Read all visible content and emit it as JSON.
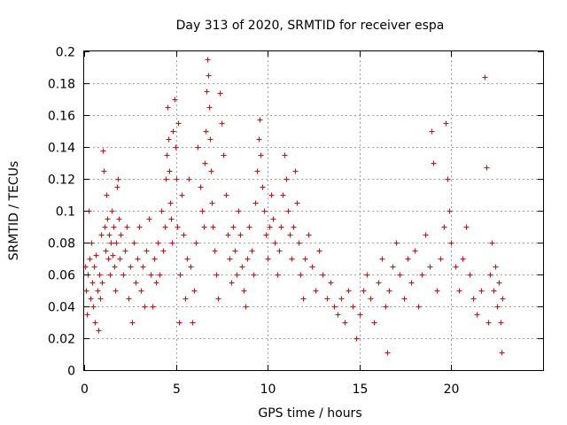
{
  "chart_data": {
    "type": "scatter",
    "title": "Day 313 of 2020, SRMTID for receiver espa",
    "xlabel": "GPS time / hours",
    "ylabel": "SRMTID / TECUs",
    "xlim": [
      0,
      25
    ],
    "ylim": [
      0,
      0.2
    ],
    "xticks": [
      0,
      5,
      10,
      15,
      20
    ],
    "yticks": [
      0,
      0.02,
      0.04,
      0.06,
      0.08,
      0.1,
      0.12,
      0.14,
      0.16,
      0.18,
      0.2
    ],
    "xtick_labels": [
      "0",
      "5",
      "10",
      "15",
      "20"
    ],
    "ytick_labels": [
      "0",
      "0.02",
      "0.04",
      "0.06",
      "0.08",
      "0.1",
      "0.12",
      "0.14",
      "0.16",
      "0.18",
      "0.2"
    ],
    "grid": true,
    "marker": "+",
    "color": "#ff0000",
    "series": [
      {
        "name": "SRMTID",
        "points": [
          [
            0.05,
            0.065
          ],
          [
            0.1,
            0.05
          ],
          [
            0.15,
            0.035
          ],
          [
            0.2,
            0.06
          ],
          [
            0.25,
            0.1
          ],
          [
            0.3,
            0.07
          ],
          [
            0.35,
            0.045
          ],
          [
            0.4,
            0.08
          ],
          [
            0.45,
            0.055
          ],
          [
            0.5,
            0.04
          ],
          [
            0.55,
            0.065
          ],
          [
            0.6,
            0.03
          ],
          [
            0.65,
            0.072
          ],
          [
            0.7,
            0.05
          ],
          [
            0.75,
            0.025
          ],
          [
            0.8,
            0.06
          ],
          [
            0.85,
            0.045
          ],
          [
            0.9,
            0.085
          ],
          [
            0.95,
            0.055
          ],
          [
            1.0,
            0.138
          ],
          [
            1.05,
            0.125
          ],
          [
            1.1,
            0.09
          ],
          [
            1.15,
            0.075
          ],
          [
            1.2,
            0.11
          ],
          [
            1.25,
            0.095
          ],
          [
            1.3,
            0.07
          ],
          [
            1.35,
            0.085
          ],
          [
            1.4,
            0.06
          ],
          [
            1.45,
            0.08
          ],
          [
            1.5,
            0.1
          ],
          [
            1.55,
            0.072
          ],
          [
            1.6,
            0.09
          ],
          [
            1.65,
            0.065
          ],
          [
            1.7,
            0.05
          ],
          [
            1.75,
            0.08
          ],
          [
            1.8,
            0.115
          ],
          [
            1.85,
            0.12
          ],
          [
            1.9,
            0.095
          ],
          [
            1.95,
            0.07
          ],
          [
            2.0,
            0.085
          ],
          [
            2.1,
            0.06
          ],
          [
            2.2,
            0.075
          ],
          [
            2.3,
            0.09
          ],
          [
            2.4,
            0.045
          ],
          [
            2.5,
            0.065
          ],
          [
            2.6,
            0.03
          ],
          [
            2.7,
            0.08
          ],
          [
            2.8,
            0.055
          ],
          [
            2.9,
            0.07
          ],
          [
            3.0,
            0.09
          ],
          [
            3.1,
            0.05
          ],
          [
            3.2,
            0.065
          ],
          [
            3.3,
            0.04
          ],
          [
            3.4,
            0.075
          ],
          [
            3.5,
            0.095
          ],
          [
            3.6,
            0.06
          ],
          [
            3.7,
            0.04
          ],
          [
            3.8,
            0.07
          ],
          [
            3.9,
            0.055
          ],
          [
            4.0,
            0.08
          ],
          [
            4.1,
            0.06
          ],
          [
            4.2,
            0.1
          ],
          [
            4.3,
            0.075
          ],
          [
            4.4,
            0.09
          ],
          [
            4.45,
            0.12
          ],
          [
            4.5,
            0.135
          ],
          [
            4.55,
            0.165
          ],
          [
            4.6,
            0.145
          ],
          [
            4.65,
            0.125
          ],
          [
            4.7,
            0.105
          ],
          [
            4.75,
            0.095
          ],
          [
            4.8,
            0.08
          ],
          [
            4.85,
            0.15
          ],
          [
            4.9,
            0.17
          ],
          [
            4.95,
            0.14
          ],
          [
            5.0,
            0.12
          ],
          [
            5.05,
            0.09
          ],
          [
            5.1,
            0.155
          ],
          [
            5.15,
            0.03
          ],
          [
            5.2,
            0.06
          ],
          [
            5.3,
            0.11
          ],
          [
            5.4,
            0.085
          ],
          [
            5.5,
            0.045
          ],
          [
            5.6,
            0.07
          ],
          [
            5.7,
            0.12
          ],
          [
            5.8,
            0.065
          ],
          [
            5.9,
            0.03
          ],
          [
            6.0,
            0.05
          ],
          [
            6.1,
            0.08
          ],
          [
            6.2,
            0.14
          ],
          [
            6.3,
            0.115
          ],
          [
            6.4,
            0.1
          ],
          [
            6.5,
            0.09
          ],
          [
            6.55,
            0.13
          ],
          [
            6.6,
            0.15
          ],
          [
            6.65,
            0.175
          ],
          [
            6.7,
            0.195
          ],
          [
            6.75,
            0.185
          ],
          [
            6.8,
            0.165
          ],
          [
            6.85,
            0.145
          ],
          [
            6.9,
            0.125
          ],
          [
            6.95,
            0.105
          ],
          [
            7.0,
            0.09
          ],
          [
            7.1,
            0.075
          ],
          [
            7.2,
            0.06
          ],
          [
            7.3,
            0.045
          ],
          [
            7.4,
            0.174
          ],
          [
            7.5,
            0.155
          ],
          [
            7.6,
            0.135
          ],
          [
            7.7,
            0.11
          ],
          [
            7.8,
            0.085
          ],
          [
            7.9,
            0.07
          ],
          [
            8.0,
            0.055
          ],
          [
            8.1,
            0.09
          ],
          [
            8.2,
            0.075
          ],
          [
            8.3,
            0.06
          ],
          [
            8.4,
            0.1
          ],
          [
            8.5,
            0.085
          ],
          [
            8.6,
            0.065
          ],
          [
            8.7,
            0.05
          ],
          [
            8.8,
            0.04
          ],
          [
            8.9,
            0.07
          ],
          [
            9.0,
            0.09
          ],
          [
            9.1,
            0.075
          ],
          [
            9.2,
            0.06
          ],
          [
            9.3,
            0.105
          ],
          [
            9.4,
            0.125
          ],
          [
            9.5,
            0.145
          ],
          [
            9.55,
            0.157
          ],
          [
            9.6,
            0.135
          ],
          [
            9.7,
            0.115
          ],
          [
            9.8,
            0.1
          ],
          [
            9.9,
            0.085
          ],
          [
            10.0,
            0.07
          ],
          [
            10.1,
            0.09
          ],
          [
            10.2,
            0.11
          ],
          [
            10.3,
            0.095
          ],
          [
            10.4,
            0.08
          ],
          [
            10.5,
            0.06
          ],
          [
            10.6,
            0.075
          ],
          [
            10.7,
            0.09
          ],
          [
            10.8,
            0.11
          ],
          [
            10.9,
            0.135
          ],
          [
            11.0,
            0.12
          ],
          [
            11.1,
            0.1
          ],
          [
            11.2,
            0.085
          ],
          [
            11.3,
            0.07
          ],
          [
            11.4,
            0.09
          ],
          [
            11.5,
            0.125
          ],
          [
            11.6,
            0.105
          ],
          [
            11.7,
            0.08
          ],
          [
            11.8,
            0.06
          ],
          [
            11.9,
            0.045
          ],
          [
            12.0,
            0.07
          ],
          [
            12.2,
            0.085
          ],
          [
            12.4,
            0.065
          ],
          [
            12.6,
            0.05
          ],
          [
            12.8,
            0.075
          ],
          [
            13.0,
            0.06
          ],
          [
            13.2,
            0.045
          ],
          [
            13.4,
            0.055
          ],
          [
            13.6,
            0.04
          ],
          [
            13.8,
            0.035
          ],
          [
            14.0,
            0.045
          ],
          [
            14.2,
            0.03
          ],
          [
            14.4,
            0.05
          ],
          [
            14.6,
            0.04
          ],
          [
            14.8,
            0.02
          ],
          [
            15.0,
            0.035
          ],
          [
            15.2,
            0.05
          ],
          [
            15.4,
            0.06
          ],
          [
            15.6,
            0.045
          ],
          [
            15.8,
            0.03
          ],
          [
            16.0,
            0.055
          ],
          [
            16.2,
            0.07
          ],
          [
            16.4,
            0.04
          ],
          [
            16.5,
            0.011
          ],
          [
            16.6,
            0.05
          ],
          [
            16.8,
            0.065
          ],
          [
            17.0,
            0.08
          ],
          [
            17.2,
            0.06
          ],
          [
            17.4,
            0.045
          ],
          [
            17.6,
            0.07
          ],
          [
            17.8,
            0.055
          ],
          [
            18.0,
            0.075
          ],
          [
            18.2,
            0.04
          ],
          [
            18.4,
            0.06
          ],
          [
            18.6,
            0.085
          ],
          [
            18.8,
            0.065
          ],
          [
            18.9,
            0.15
          ],
          [
            19.0,
            0.13
          ],
          [
            19.2,
            0.05
          ],
          [
            19.4,
            0.07
          ],
          [
            19.6,
            0.09
          ],
          [
            19.7,
            0.155
          ],
          [
            19.8,
            0.12
          ],
          [
            19.9,
            0.1
          ],
          [
            20.0,
            0.08
          ],
          [
            20.2,
            0.065
          ],
          [
            20.4,
            0.05
          ],
          [
            20.6,
            0.07
          ],
          [
            20.8,
            0.09
          ],
          [
            21.0,
            0.06
          ],
          [
            21.2,
            0.045
          ],
          [
            21.4,
            0.035
          ],
          [
            21.6,
            0.05
          ],
          [
            21.8,
            0.184
          ],
          [
            21.9,
            0.127
          ],
          [
            22.0,
            0.03
          ],
          [
            22.1,
            0.06
          ],
          [
            22.2,
            0.08
          ],
          [
            22.3,
            0.05
          ],
          [
            22.4,
            0.065
          ],
          [
            22.5,
            0.04
          ],
          [
            22.6,
            0.055
          ],
          [
            22.7,
            0.03
          ],
          [
            22.75,
            0.011
          ],
          [
            22.8,
            0.045
          ]
        ]
      }
    ]
  }
}
